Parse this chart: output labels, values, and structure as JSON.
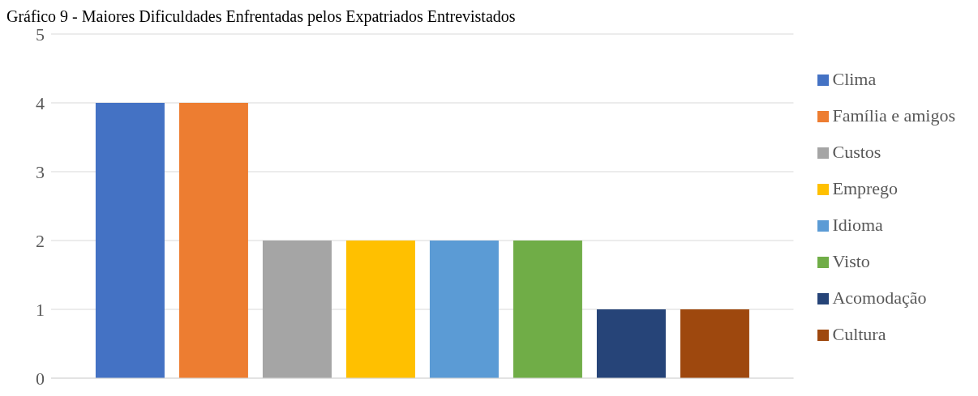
{
  "chart_data": {
    "type": "bar",
    "title": "Gráfico 9 - Maiores Dificuldades Enfrentadas pelos Expatriados Entrevistados",
    "categories": [
      null
    ],
    "series": [
      {
        "name": "Clima",
        "color": "#4472c4",
        "values": [
          4
        ]
      },
      {
        "name": "Família e amigos",
        "color": "#ed7d31",
        "values": [
          4
        ]
      },
      {
        "name": "Custos",
        "color": "#a5a5a5",
        "values": [
          2
        ]
      },
      {
        "name": "Emprego",
        "color": "#ffc000",
        "values": [
          2
        ]
      },
      {
        "name": "Idioma",
        "color": "#5b9bd5",
        "values": [
          2
        ]
      },
      {
        "name": "Visto",
        "color": "#70ad47",
        "values": [
          2
        ]
      },
      {
        "name": "Acomodação",
        "color": "#264478",
        "values": [
          1
        ]
      },
      {
        "name": "Cultura",
        "color": "#9e480e",
        "values": [
          1
        ]
      }
    ],
    "ylim": [
      0,
      5
    ],
    "yticks": [
      0,
      1,
      2,
      3,
      4,
      5
    ],
    "grid": "y",
    "legend": "right"
  }
}
